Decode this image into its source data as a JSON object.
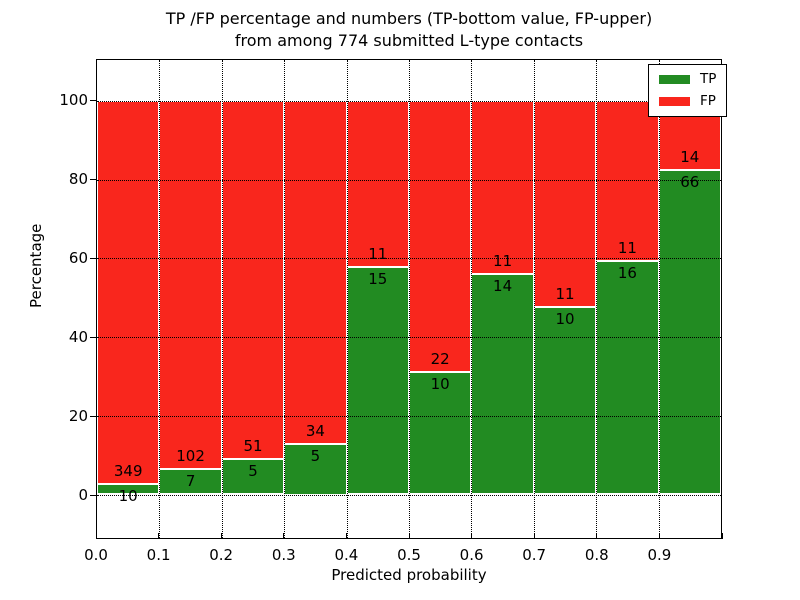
{
  "title": {
    "line1": "TP /FP percentage and numbers (TP-bottom value, FP-upper)",
    "line2": "from among 774 submitted L-type contacts"
  },
  "axes": {
    "ylabel": "Percentage",
    "xlabel": "Predicted probability",
    "yticks": [
      "0",
      "20",
      "40",
      "60",
      "80",
      "100"
    ],
    "ytick_values": [
      0,
      20,
      40,
      60,
      80,
      100
    ],
    "xticks": [
      "0.0",
      "0.1",
      "0.2",
      "0.3",
      "0.4",
      "0.5",
      "0.6",
      "0.7",
      "0.8",
      "0.9"
    ]
  },
  "legend": {
    "items": [
      {
        "label": "TP",
        "color_key": "tp"
      },
      {
        "label": "FP",
        "color_key": "fp"
      }
    ],
    "position": "upper right"
  },
  "colors": {
    "tp": "#228b22",
    "fp": "#f9261d",
    "bar_edge": "#ffffff",
    "grid": "#000000",
    "text": "#000000"
  },
  "chart_data": {
    "type": "bar",
    "stacked": true,
    "normalized_to_percent": true,
    "title": "TP /FP percentage and numbers (TP-bottom value, FP-upper) from among 774 submitted L-type contacts",
    "xlabel": "Predicted probability",
    "ylabel": "Percentage",
    "bin_edges": [
      0.0,
      0.1,
      0.2,
      0.3,
      0.4,
      0.5,
      0.6,
      0.7,
      0.8,
      0.9,
      1.0
    ],
    "categories": [
      "0.0-0.1",
      "0.1-0.2",
      "0.2-0.3",
      "0.3-0.4",
      "0.4-0.5",
      "0.5-0.6",
      "0.6-0.7",
      "0.7-0.8",
      "0.8-0.9",
      "0.9-1.0"
    ],
    "series": [
      {
        "name": "TP",
        "counts": [
          10,
          7,
          5,
          5,
          15,
          10,
          14,
          10,
          16,
          66
        ]
      },
      {
        "name": "FP",
        "counts": [
          349,
          102,
          51,
          34,
          11,
          22,
          11,
          11,
          11,
          14
        ]
      }
    ],
    "tp_percent": [
      2.8,
      6.4,
      8.9,
      12.8,
      57.7,
      31.3,
      56.0,
      47.6,
      59.3,
      82.5
    ],
    "total_contacts": 774,
    "xlim": [
      0.0,
      1.0
    ],
    "ylim": [
      -11,
      110.5
    ],
    "grid": "dotted",
    "legend_position": "upper right",
    "annotation_rule": "TP count below segment boundary, FP count above segment boundary"
  }
}
